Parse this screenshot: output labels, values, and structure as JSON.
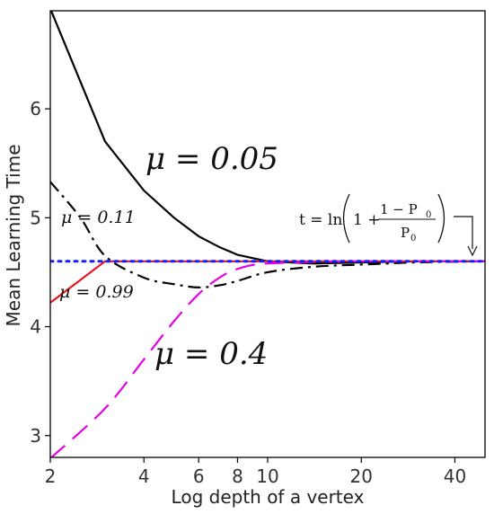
{
  "chart_data": {
    "type": "line",
    "title": "",
    "xlabel": "Log depth of a vertex",
    "ylabel": "Mean Learning Time",
    "x_scale": "log",
    "xlim": [
      2,
      50
    ],
    "ylim": [
      2.8,
      6.9
    ],
    "x_ticks": [
      2,
      4,
      6,
      8,
      10,
      20,
      40
    ],
    "y_ticks": [
      3,
      4,
      5,
      6
    ],
    "grid": false,
    "colors": {
      "mu_0_05": "#000000",
      "mu_0_11": "#000000",
      "mu_0_99": "#e8141b",
      "mu_0_4": "#e600e6",
      "asymptote": "#1a1aff"
    },
    "series": [
      {
        "key": "mu_0_05",
        "style": "solid",
        "points": [
          [
            2,
            6.92
          ],
          [
            3,
            5.7
          ],
          [
            4,
            5.25
          ],
          [
            5,
            5.0
          ],
          [
            6,
            4.83
          ],
          [
            7,
            4.73
          ],
          [
            8,
            4.66
          ],
          [
            10,
            4.6
          ],
          [
            14,
            4.58
          ],
          [
            20,
            4.59
          ],
          [
            30,
            4.6
          ],
          [
            50,
            4.6
          ]
        ]
      },
      {
        "key": "mu_0_11",
        "style": "dashdot",
        "points": [
          [
            2,
            5.33
          ],
          [
            2.5,
            5.0
          ],
          [
            3,
            4.65
          ],
          [
            4,
            4.45
          ],
          [
            5,
            4.39
          ],
          [
            6,
            4.36
          ],
          [
            7,
            4.38
          ],
          [
            8,
            4.42
          ],
          [
            10,
            4.5
          ],
          [
            14,
            4.55
          ],
          [
            20,
            4.57
          ],
          [
            30,
            4.59
          ],
          [
            50,
            4.6
          ]
        ]
      },
      {
        "key": "mu_0_99",
        "style": "solid",
        "points": [
          [
            2,
            4.22
          ],
          [
            3,
            4.6
          ],
          [
            50,
            4.6
          ]
        ]
      },
      {
        "key": "mu_0_4",
        "style": "dashed",
        "points": [
          [
            2,
            2.79
          ],
          [
            3,
            3.25
          ],
          [
            4,
            3.7
          ],
          [
            5,
            4.05
          ],
          [
            6,
            4.3
          ],
          [
            7,
            4.45
          ],
          [
            8,
            4.53
          ],
          [
            10,
            4.58
          ],
          [
            20,
            4.6
          ],
          [
            50,
            4.6
          ]
        ]
      },
      {
        "key": "asymptote",
        "style": "dotted",
        "points": [
          [
            2,
            4.6
          ],
          [
            50,
            4.6
          ]
        ]
      }
    ],
    "annotations": {
      "mu_0_05": "μ = 0.05",
      "mu_0_11": "μ = 0.11",
      "mu_0_99": "μ = 0.99",
      "mu_0_4": "μ = 0.4",
      "formula_lhs": "t = ln",
      "formula_one": "1 +",
      "formula_num": "1 − P",
      "formula_den": "P",
      "formula_sub": "0"
    }
  }
}
